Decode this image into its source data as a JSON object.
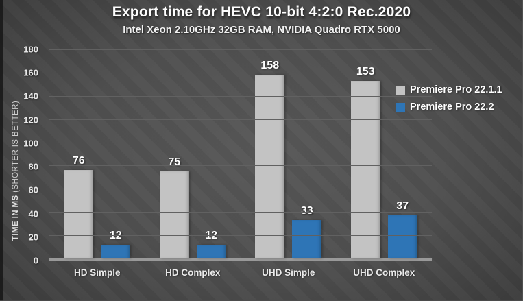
{
  "chart_data": {
    "type": "bar",
    "title": "Export time for HEVC 10-bit 4:2:0 Rec.2020",
    "subtitle": "Intel Xeon 2.10GHz 32GB RAM, NVIDIA Quadro RTX 5000",
    "categories": [
      "HD Simple",
      "HD Complex",
      "UHD Simple",
      "UHD Complex"
    ],
    "series": [
      {
        "name": "Premiere Pro 22.1.1",
        "color": "#c3c3c3",
        "values": [
          76,
          75,
          158,
          153
        ]
      },
      {
        "name": "Premiere Pro 22.2",
        "color": "#2e75b6",
        "values": [
          12,
          12,
          33,
          37
        ]
      }
    ],
    "ylabel_main": "TIME IN MS",
    "ylabel_note": " (SHORTER IS BETTER)",
    "ylim": [
      0,
      180
    ],
    "yticks": [
      0,
      20,
      40,
      60,
      80,
      100,
      120,
      140,
      160,
      180
    ],
    "grid": true,
    "legend_position": "right",
    "colors": {
      "gridline": "#616161",
      "axis_line": "#999999",
      "tick_label": "#e8e8e8",
      "value_label": "#ffffff"
    }
  }
}
